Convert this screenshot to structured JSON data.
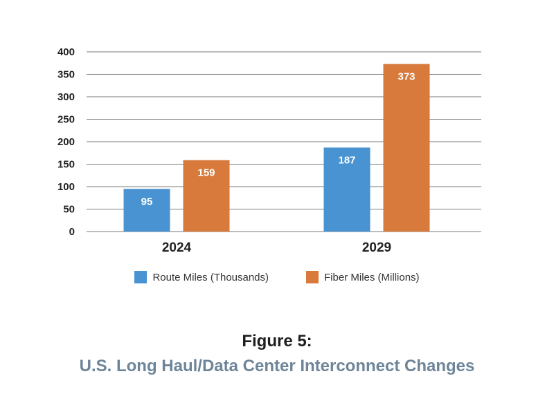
{
  "chart_data": {
    "type": "bar",
    "categories": [
      "2024",
      "2029"
    ],
    "series": [
      {
        "name": "Route Miles (Thousands)",
        "values": [
          95,
          187
        ],
        "color": "#4a93d2"
      },
      {
        "name": "Fiber Miles (Millions)",
        "values": [
          159,
          373
        ],
        "color": "#d77a3c"
      }
    ],
    "ylim": [
      0,
      400
    ],
    "yticks": [
      0,
      50,
      100,
      150,
      200,
      250,
      300,
      350,
      400
    ],
    "grid": true,
    "legend_position": "bottom",
    "data_labels": true
  },
  "caption": {
    "figure_number": "Figure 5:",
    "title": "U.S. Long Haul/Data Center Interconnect Changes"
  }
}
